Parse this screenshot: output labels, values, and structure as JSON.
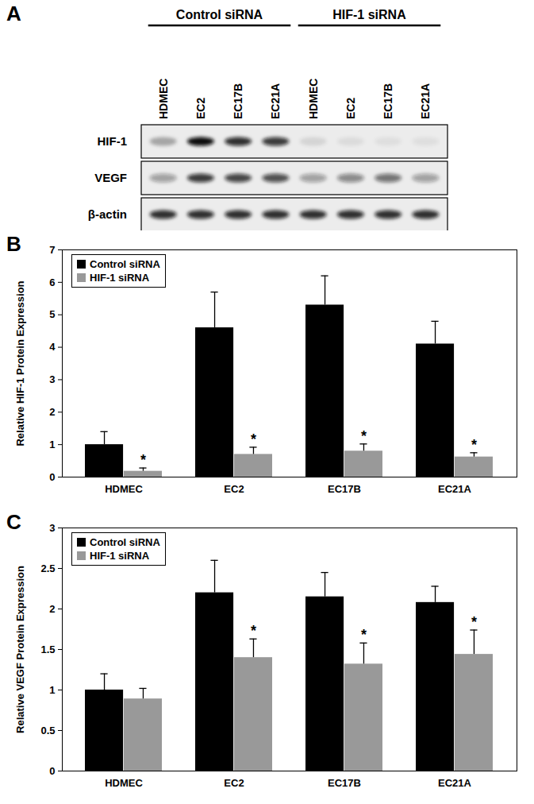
{
  "blot": {
    "panel_label": "A",
    "groups": [
      {
        "label": "Control siRNA",
        "lanes": [
          "HDMEC",
          "EC2",
          "EC17B",
          "EC21A"
        ]
      },
      {
        "label": "HIF-1 siRNA",
        "lanes": [
          "HDMEC",
          "EC2",
          "EC17B",
          "EC21A"
        ]
      }
    ],
    "rows": [
      {
        "label": "HIF-1",
        "intensity": [
          0.3,
          1.0,
          0.85,
          0.8,
          0.1,
          0.07,
          0.06,
          0.06
        ]
      },
      {
        "label": "VEGF",
        "intensity": [
          0.35,
          0.8,
          0.75,
          0.7,
          0.35,
          0.45,
          0.55,
          0.35
        ]
      },
      {
        "label": "β-actin",
        "intensity": [
          0.85,
          0.85,
          0.85,
          0.85,
          0.85,
          0.85,
          0.85,
          0.85
        ]
      }
    ]
  },
  "chart_data": [
    {
      "type": "bar",
      "panel_label": "B",
      "y_label": "Relative HIF-1 Protein Expression",
      "categories": [
        "HDMEC",
        "EC2",
        "EC17B",
        "EC21A"
      ],
      "series": [
        {
          "name": "Control siRNA",
          "color": "#000000",
          "values": [
            1.0,
            4.6,
            5.3,
            4.1
          ],
          "errors": [
            0.4,
            1.1,
            0.9,
            0.7
          ]
        },
        {
          "name": "HIF-1 siRNA",
          "color": "#999999",
          "values": [
            0.18,
            0.7,
            0.8,
            0.62
          ],
          "errors": [
            0.1,
            0.22,
            0.22,
            0.13
          ]
        }
      ],
      "annotations": [
        {
          "category": "HDMEC",
          "series": "HIF-1 siRNA",
          "text": "*"
        },
        {
          "category": "EC2",
          "series": "HIF-1 siRNA",
          "text": "*"
        },
        {
          "category": "EC17B",
          "series": "HIF-1 siRNA",
          "text": "*"
        },
        {
          "category": "EC21A",
          "series": "HIF-1 siRNA",
          "text": "*"
        }
      ],
      "ylim": [
        0,
        7
      ],
      "yticks": [
        0,
        1,
        2,
        3,
        4,
        5,
        6,
        7
      ],
      "legend": "top-left"
    },
    {
      "type": "bar",
      "panel_label": "C",
      "y_label": "Relative VEGF Protein Expression",
      "categories": [
        "HDMEC",
        "EC2",
        "EC17B",
        "EC21A"
      ],
      "series": [
        {
          "name": "Control siRNA",
          "color": "#000000",
          "values": [
            1.0,
            2.2,
            2.15,
            2.08
          ],
          "errors": [
            0.2,
            0.4,
            0.3,
            0.2
          ]
        },
        {
          "name": "HIF-1 siRNA",
          "color": "#999999",
          "values": [
            0.89,
            1.4,
            1.32,
            1.44
          ],
          "errors": [
            0.13,
            0.23,
            0.26,
            0.3
          ]
        }
      ],
      "annotations": [
        {
          "category": "EC2",
          "series": "HIF-1 siRNA",
          "text": "*"
        },
        {
          "category": "EC17B",
          "series": "HIF-1 siRNA",
          "text": "*"
        },
        {
          "category": "EC21A",
          "series": "HIF-1 siRNA",
          "text": "*"
        }
      ],
      "ylim": [
        0,
        3
      ],
      "yticks": [
        0,
        0.5,
        1,
        1.5,
        2,
        2.5,
        3
      ],
      "legend": "top-left"
    }
  ]
}
